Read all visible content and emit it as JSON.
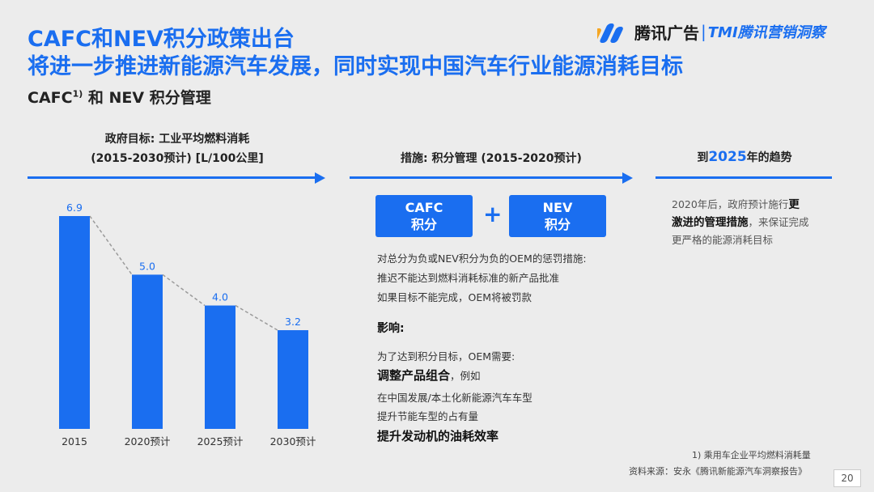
{
  "header": {
    "title_line1": "CAFC和NEV积分政策出台",
    "title_line2": "将进一步推进新能源汽车发展，同时实现中国汽车行业能源消耗目标",
    "subtitle_main": "CAFC",
    "subtitle_sup": "1)",
    "subtitle_rest": " 和 NEV 积分管理",
    "logo_text": "腾讯广告",
    "logo_sep": "|",
    "logo_text2": "TMI腾讯营销洞察"
  },
  "left_column": {
    "heading_line1": "政府目标: 工业平均燃料消耗",
    "heading_line2": "(2015-2030预计) [L/100公里]"
  },
  "middle_column": {
    "heading": "措施: 积分管理 (2015-2020预计)",
    "pill_cafc_line1": "CAFC",
    "pill_cafc_line2": "积分",
    "plus": "+",
    "pill_nev_line1": "NEV",
    "pill_nev_line2": "积分",
    "desc_lines": [
      "对总分为负或NEV积分为负的OEM的惩罚措施:",
      "推迟不能达到燃料消耗标准的新产品批准",
      "如果目标不能完成，OEM将被罚款"
    ],
    "impact_title": "影响:",
    "impact_intro": "为了达到积分目标，OEM需要:",
    "impact_bold1": "调整产品组合",
    "impact_bold1_suffix": "，例如",
    "impact_lines": [
      "在中国发展/本土化新能源汽车车型",
      "提升节能车型的占有量"
    ],
    "impact_bold2": "提升发动机的油耗效率"
  },
  "right_column": {
    "heading_prefix": "到",
    "heading_year": "2025",
    "heading_suffix": "年的趋势",
    "trend_text1": "2020年后，政府预计施行",
    "trend_bold": "更激进的管理措施",
    "trend_text2": "，来保证完成更严格的能源消耗目标"
  },
  "footer": {
    "footnote1": "1) 乘用车企业平均燃料消耗量",
    "source": "资料来源：安永《腾讯新能源汽车洞察报告》",
    "page_number": "20"
  },
  "colors": {
    "accent": "#1a6ef0",
    "background": "#ececec",
    "trend_line": "#9a9a9a"
  },
  "chart_data": {
    "type": "bar",
    "categories": [
      "2015",
      "2020预计",
      "2025预计",
      "2030预计"
    ],
    "values": [
      6.9,
      5.0,
      4.0,
      3.2
    ],
    "value_labels": [
      "6.9",
      "5.0",
      "4.0",
      "3.2"
    ],
    "title": "",
    "xlabel": "",
    "ylabel": "",
    "ylim": [
      0,
      6.9
    ],
    "trend_line": "dashed",
    "grid": false
  }
}
